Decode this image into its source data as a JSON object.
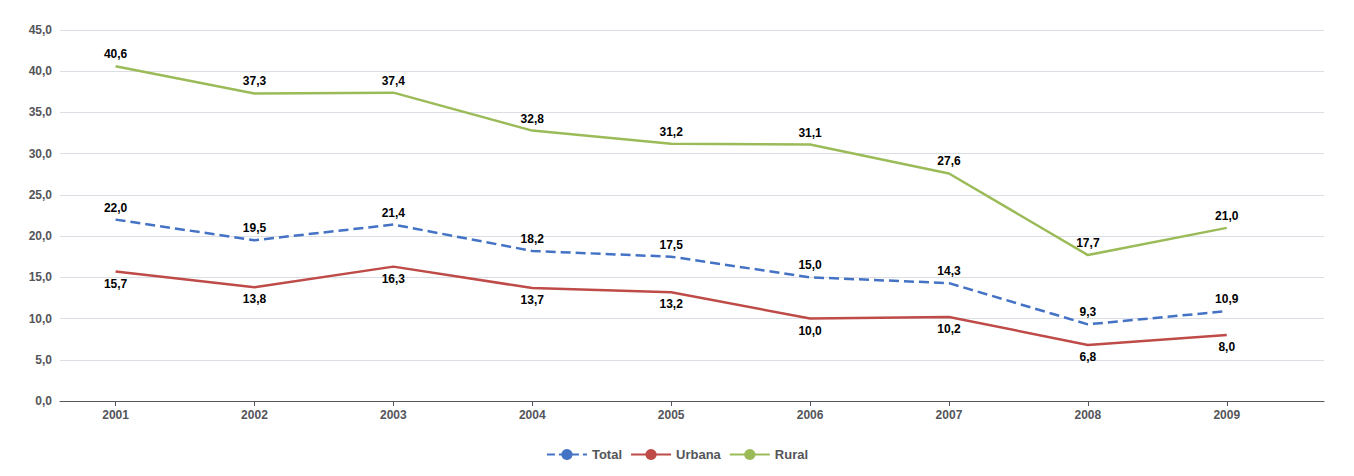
{
  "chart_data": {
    "type": "line",
    "x": [
      2001,
      2002,
      2003,
      2004,
      2005,
      2006,
      2007,
      2008,
      2009
    ],
    "series": [
      {
        "name": "Total",
        "color": "#4472C4",
        "line_style": "dashed",
        "values": [
          22.0,
          19.5,
          21.4,
          18.2,
          17.5,
          15.0,
          14.3,
          9.3,
          10.9
        ],
        "value_labels": [
          "22,0",
          "19,5",
          "21,4",
          "18,2",
          "17,5",
          "15,0",
          "14,3",
          "9,3",
          "10,9"
        ]
      },
      {
        "name": "Urbana",
        "color": "#BE4B48",
        "line_style": "solid",
        "values": [
          15.7,
          13.8,
          16.3,
          13.7,
          13.2,
          10.0,
          10.2,
          6.8,
          8.0
        ],
        "value_labels": [
          "15,7",
          "13,8",
          "16,3",
          "13,7",
          "13,2",
          "10,0",
          "10,2",
          "6,8",
          "8,0"
        ]
      },
      {
        "name": "Rural",
        "color": "#9BBB59",
        "line_style": "solid",
        "values": [
          40.6,
          37.3,
          37.4,
          32.8,
          31.2,
          31.1,
          27.6,
          17.7,
          21.0
        ],
        "value_labels": [
          "40,6",
          "37,3",
          "37,4",
          "32,8",
          "31,2",
          "31,1",
          "27,6",
          "17,7",
          "21,0"
        ]
      }
    ],
    "xlim": [
      2000.6,
      2009.7
    ],
    "xticks": [
      2001,
      2002,
      2003,
      2004,
      2005,
      2006,
      2007,
      2008,
      2009
    ],
    "ylim": [
      0,
      45
    ],
    "yticks": [
      {
        "value": 0,
        "label": "0,0"
      },
      {
        "value": 5,
        "label": "5,0"
      },
      {
        "value": 10,
        "label": "10,0"
      },
      {
        "value": 15,
        "label": "15,0"
      },
      {
        "value": 20,
        "label": "20,0"
      },
      {
        "value": 25,
        "label": "25,0"
      },
      {
        "value": 30,
        "label": "30,0"
      },
      {
        "value": 35,
        "label": "35,0"
      },
      {
        "value": 40,
        "label": "40,0"
      },
      {
        "value": 45,
        "label": "45,0"
      }
    ],
    "grid": true,
    "legend": "bottom",
    "data_labels": true
  }
}
